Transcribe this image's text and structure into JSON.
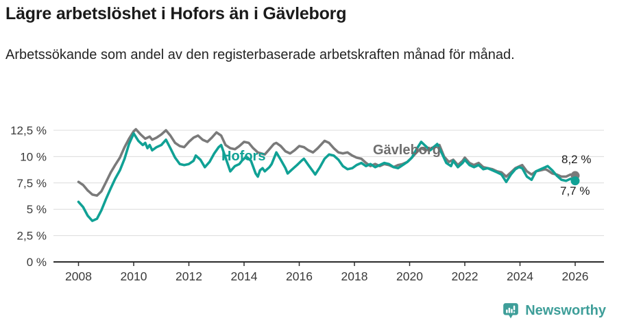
{
  "header": {
    "title": "Lägre arbetslöshet i Hofors än i Gävleborg",
    "subtitle": "Arbetssökande som andel av den registerbaserade arbetskraften månad för månad."
  },
  "footer": {
    "brand": "Newsworthy",
    "logo_icon": "newsworthy-chart-pin",
    "brand_color": "#3E9E99"
  },
  "chart_data": {
    "type": "line",
    "title": "Lägre arbetslöshet i Hofors än i Gävleborg",
    "xlabel": "",
    "ylabel": "",
    "unit": "%",
    "grid": "horizontal",
    "legend": "inline-labels",
    "x_axis": {
      "min": 2008,
      "max": 2026.2,
      "ticks": [
        {
          "year": 2008,
          "label": "2008"
        },
        {
          "year": 2010,
          "label": "2010"
        },
        {
          "year": 2012,
          "label": "2012"
        },
        {
          "year": 2014,
          "label": "2014"
        },
        {
          "year": 2016,
          "label": "2016"
        },
        {
          "year": 2018,
          "label": "2018"
        },
        {
          "year": 2020,
          "label": "2020"
        },
        {
          "year": 2022,
          "label": "2022"
        },
        {
          "year": 2024,
          "label": "2024"
        },
        {
          "year": 2026,
          "label": "2026"
        }
      ]
    },
    "y_axis": {
      "min": 0,
      "max": 13,
      "ticks": [
        {
          "value": 0,
          "label": "0 %"
        },
        {
          "value": 2.5,
          "label": "2,5 %"
        },
        {
          "value": 5,
          "label": "5 %"
        },
        {
          "value": 7.5,
          "label": "7,5 %"
        },
        {
          "value": 10,
          "label": "10 %"
        },
        {
          "value": 12.5,
          "label": "12,5 %"
        }
      ]
    },
    "colors": {
      "grid": "#dcdcdc",
      "axis": "#2b2b2b",
      "axis_text": "#3a3a3a",
      "hofors": "#10A195",
      "gavleborg": "#7a7a7a"
    },
    "end_labels": {
      "gavleborg": "8,2 %",
      "hofors": "7,7 %"
    },
    "series": [
      {
        "name": "Gävleborg",
        "slug": "gavleborg",
        "color": "#7a7a7a",
        "end_value": 8.2,
        "points": [
          [
            2008.0,
            7.6
          ],
          [
            2008.17,
            7.3
          ],
          [
            2008.33,
            6.8
          ],
          [
            2008.5,
            6.4
          ],
          [
            2008.67,
            6.3
          ],
          [
            2008.83,
            6.7
          ],
          [
            2009.0,
            7.6
          ],
          [
            2009.17,
            8.5
          ],
          [
            2009.33,
            9.2
          ],
          [
            2009.5,
            9.9
          ],
          [
            2009.67,
            10.9
          ],
          [
            2009.83,
            11.7
          ],
          [
            2010.0,
            12.4
          ],
          [
            2010.08,
            12.6
          ],
          [
            2010.25,
            12.1
          ],
          [
            2010.42,
            11.7
          ],
          [
            2010.58,
            11.9
          ],
          [
            2010.67,
            11.6
          ],
          [
            2010.83,
            11.8
          ],
          [
            2011.0,
            12.1
          ],
          [
            2011.17,
            12.5
          ],
          [
            2011.33,
            12.0
          ],
          [
            2011.5,
            11.3
          ],
          [
            2011.67,
            11.0
          ],
          [
            2011.83,
            10.9
          ],
          [
            2012.0,
            11.4
          ],
          [
            2012.17,
            11.8
          ],
          [
            2012.33,
            12.0
          ],
          [
            2012.5,
            11.6
          ],
          [
            2012.67,
            11.4
          ],
          [
            2012.83,
            11.8
          ],
          [
            2013.0,
            12.3
          ],
          [
            2013.17,
            12.0
          ],
          [
            2013.33,
            11.1
          ],
          [
            2013.5,
            10.8
          ],
          [
            2013.67,
            10.7
          ],
          [
            2013.83,
            11.0
          ],
          [
            2014.0,
            11.4
          ],
          [
            2014.17,
            11.3
          ],
          [
            2014.33,
            10.8
          ],
          [
            2014.5,
            10.4
          ],
          [
            2014.75,
            10.2
          ],
          [
            2014.92,
            10.7
          ],
          [
            2015.08,
            11.2
          ],
          [
            2015.17,
            11.3
          ],
          [
            2015.33,
            11.0
          ],
          [
            2015.5,
            10.5
          ],
          [
            2015.67,
            10.3
          ],
          [
            2015.83,
            10.6
          ],
          [
            2016.0,
            11.0
          ],
          [
            2016.17,
            10.9
          ],
          [
            2016.33,
            10.6
          ],
          [
            2016.5,
            10.4
          ],
          [
            2016.67,
            10.8
          ],
          [
            2016.92,
            11.5
          ],
          [
            2017.08,
            11.3
          ],
          [
            2017.25,
            10.8
          ],
          [
            2017.42,
            10.4
          ],
          [
            2017.58,
            10.3
          ],
          [
            2017.75,
            10.4
          ],
          [
            2017.92,
            10.1
          ],
          [
            2018.08,
            9.9
          ],
          [
            2018.25,
            9.8
          ],
          [
            2018.42,
            9.4
          ],
          [
            2018.58,
            9.1
          ],
          [
            2018.75,
            9.3
          ],
          [
            2018.92,
            9.1
          ],
          [
            2019.08,
            9.3
          ],
          [
            2019.25,
            9.2
          ],
          [
            2019.42,
            9.0
          ],
          [
            2019.58,
            9.2
          ],
          [
            2019.75,
            9.3
          ],
          [
            2019.92,
            9.5
          ],
          [
            2020.08,
            9.9
          ],
          [
            2020.25,
            10.4
          ],
          [
            2020.42,
            10.8
          ],
          [
            2020.58,
            10.6
          ],
          [
            2020.75,
            10.7
          ],
          [
            2020.92,
            11.0
          ],
          [
            2021.08,
            11.1
          ],
          [
            2021.25,
            10.0
          ],
          [
            2021.42,
            9.5
          ],
          [
            2021.58,
            9.7
          ],
          [
            2021.75,
            9.2
          ],
          [
            2021.92,
            9.6
          ],
          [
            2022.0,
            9.9
          ],
          [
            2022.17,
            9.4
          ],
          [
            2022.33,
            9.2
          ],
          [
            2022.5,
            9.4
          ],
          [
            2022.67,
            9.0
          ],
          [
            2022.83,
            8.9
          ],
          [
            2023.0,
            8.8
          ],
          [
            2023.17,
            8.6
          ],
          [
            2023.33,
            8.5
          ],
          [
            2023.5,
            8.1
          ],
          [
            2023.67,
            8.5
          ],
          [
            2023.83,
            8.9
          ],
          [
            2024.0,
            9.1
          ],
          [
            2024.08,
            9.2
          ],
          [
            2024.25,
            8.6
          ],
          [
            2024.42,
            8.3
          ],
          [
            2024.58,
            8.6
          ],
          [
            2024.75,
            8.7
          ],
          [
            2024.92,
            8.8
          ],
          [
            2025.0,
            8.7
          ],
          [
            2025.17,
            8.4
          ],
          [
            2025.33,
            8.3
          ],
          [
            2025.5,
            8.1
          ],
          [
            2025.67,
            8.1
          ],
          [
            2025.83,
            8.3
          ],
          [
            2026.0,
            8.2
          ]
        ]
      },
      {
        "name": "Hofors",
        "slug": "hofors",
        "color": "#10A195",
        "end_value": 7.7,
        "points": [
          [
            2008.0,
            5.7
          ],
          [
            2008.17,
            5.2
          ],
          [
            2008.33,
            4.4
          ],
          [
            2008.5,
            3.9
          ],
          [
            2008.67,
            4.1
          ],
          [
            2008.83,
            4.9
          ],
          [
            2009.0,
            6.0
          ],
          [
            2009.17,
            7.0
          ],
          [
            2009.33,
            7.9
          ],
          [
            2009.5,
            8.7
          ],
          [
            2009.67,
            9.8
          ],
          [
            2009.83,
            11.2
          ],
          [
            2010.0,
            12.2
          ],
          [
            2010.17,
            11.5
          ],
          [
            2010.33,
            11.1
          ],
          [
            2010.42,
            11.3
          ],
          [
            2010.5,
            10.8
          ],
          [
            2010.58,
            11.1
          ],
          [
            2010.67,
            10.6
          ],
          [
            2010.83,
            10.9
          ],
          [
            2011.0,
            11.1
          ],
          [
            2011.17,
            11.6
          ],
          [
            2011.33,
            10.8
          ],
          [
            2011.5,
            9.9
          ],
          [
            2011.67,
            9.3
          ],
          [
            2011.83,
            9.2
          ],
          [
            2012.0,
            9.3
          ],
          [
            2012.17,
            9.6
          ],
          [
            2012.25,
            10.1
          ],
          [
            2012.42,
            9.7
          ],
          [
            2012.58,
            9.0
          ],
          [
            2012.75,
            9.5
          ],
          [
            2012.92,
            10.3
          ],
          [
            2013.08,
            10.9
          ],
          [
            2013.17,
            11.1
          ],
          [
            2013.33,
            9.9
          ],
          [
            2013.5,
            8.6
          ],
          [
            2013.67,
            9.1
          ],
          [
            2013.83,
            9.3
          ],
          [
            2013.92,
            9.6
          ],
          [
            2014.08,
            10.0
          ],
          [
            2014.25,
            9.6
          ],
          [
            2014.42,
            8.4
          ],
          [
            2014.5,
            8.1
          ],
          [
            2014.58,
            8.7
          ],
          [
            2014.67,
            8.9
          ],
          [
            2014.75,
            8.6
          ],
          [
            2014.92,
            9.0
          ],
          [
            2015.0,
            9.3
          ],
          [
            2015.17,
            10.4
          ],
          [
            2015.33,
            9.7
          ],
          [
            2015.5,
            8.9
          ],
          [
            2015.58,
            8.4
          ],
          [
            2015.75,
            8.8
          ],
          [
            2015.92,
            9.2
          ],
          [
            2016.08,
            9.6
          ],
          [
            2016.17,
            9.8
          ],
          [
            2016.33,
            9.2
          ],
          [
            2016.5,
            8.6
          ],
          [
            2016.58,
            8.3
          ],
          [
            2016.75,
            9.0
          ],
          [
            2016.92,
            9.8
          ],
          [
            2017.08,
            10.2
          ],
          [
            2017.25,
            10.1
          ],
          [
            2017.42,
            9.7
          ],
          [
            2017.58,
            9.1
          ],
          [
            2017.75,
            8.8
          ],
          [
            2017.92,
            8.9
          ],
          [
            2018.08,
            9.2
          ],
          [
            2018.25,
            9.4
          ],
          [
            2018.42,
            9.1
          ],
          [
            2018.58,
            9.3
          ],
          [
            2018.75,
            9.0
          ],
          [
            2018.92,
            9.2
          ],
          [
            2019.08,
            9.4
          ],
          [
            2019.25,
            9.3
          ],
          [
            2019.42,
            9.0
          ],
          [
            2019.58,
            8.9
          ],
          [
            2019.75,
            9.2
          ],
          [
            2019.92,
            9.5
          ],
          [
            2020.08,
            9.9
          ],
          [
            2020.25,
            10.7
          ],
          [
            2020.42,
            11.4
          ],
          [
            2020.58,
            11.0
          ],
          [
            2020.75,
            10.6
          ],
          [
            2020.92,
            11.0
          ],
          [
            2021.0,
            11.2
          ],
          [
            2021.17,
            10.3
          ],
          [
            2021.33,
            9.4
          ],
          [
            2021.5,
            9.1
          ],
          [
            2021.58,
            9.6
          ],
          [
            2021.75,
            9.0
          ],
          [
            2021.92,
            9.4
          ],
          [
            2022.0,
            9.7
          ],
          [
            2022.17,
            9.2
          ],
          [
            2022.33,
            9.0
          ],
          [
            2022.5,
            9.2
          ],
          [
            2022.67,
            8.8
          ],
          [
            2022.83,
            8.9
          ],
          [
            2023.0,
            8.7
          ],
          [
            2023.17,
            8.5
          ],
          [
            2023.33,
            8.3
          ],
          [
            2023.5,
            7.6
          ],
          [
            2023.67,
            8.3
          ],
          [
            2023.83,
            8.8
          ],
          [
            2023.96,
            9.0
          ],
          [
            2024.08,
            8.9
          ],
          [
            2024.25,
            8.1
          ],
          [
            2024.42,
            7.8
          ],
          [
            2024.58,
            8.6
          ],
          [
            2024.75,
            8.8
          ],
          [
            2024.92,
            9.0
          ],
          [
            2025.0,
            9.1
          ],
          [
            2025.17,
            8.7
          ],
          [
            2025.33,
            8.2
          ],
          [
            2025.5,
            7.8
          ],
          [
            2025.67,
            7.7
          ],
          [
            2025.83,
            7.9
          ],
          [
            2026.0,
            7.7
          ]
        ]
      }
    ]
  }
}
